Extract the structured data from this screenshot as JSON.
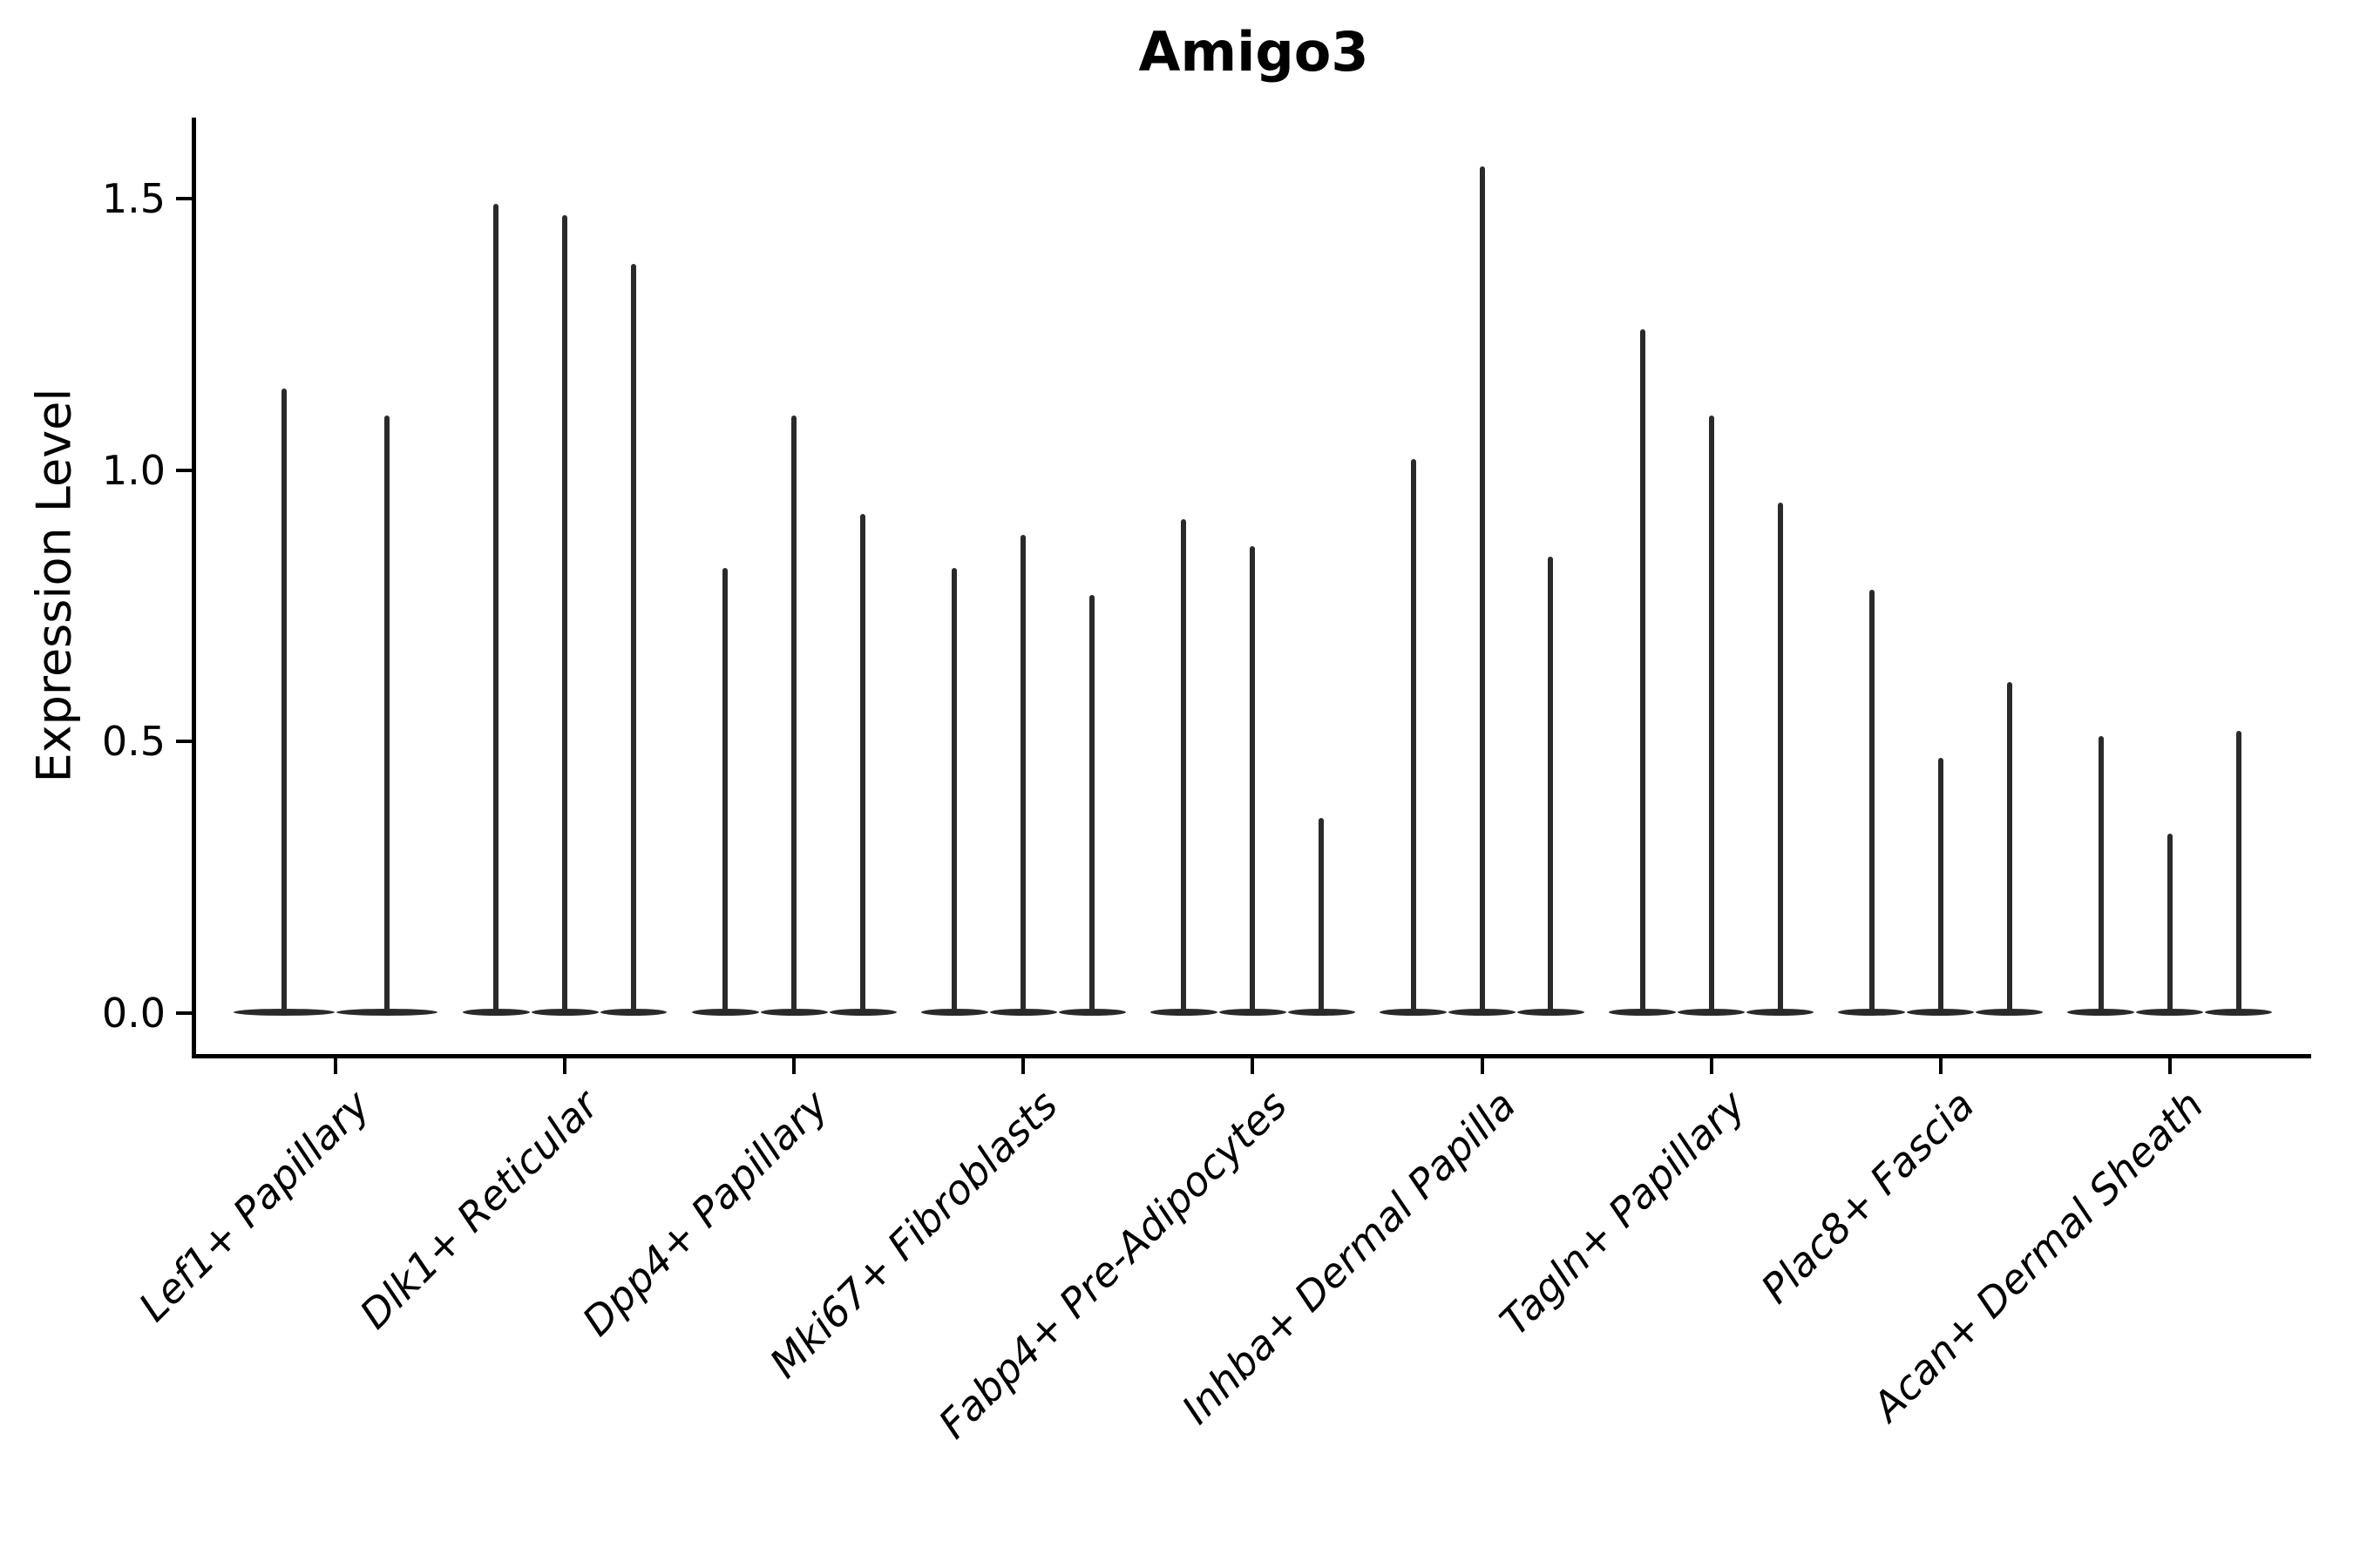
{
  "chart_data": {
    "type": "violin",
    "title": "Amigo3",
    "ylabel": "Expression Level",
    "xlabel": "",
    "yticks": [
      "0.0",
      "0.5",
      "1.0",
      "1.5"
    ],
    "ytick_values": [
      0.0,
      0.5,
      1.0,
      1.5
    ],
    "ylim": [
      -0.075,
      1.65
    ],
    "grid": "off",
    "legend": "none",
    "style_note": "needle violins: nearly all density at 0 with thin spike to max expression",
    "violin_color": "#2a2a2a",
    "axis_color": "#000000",
    "categories": [
      {
        "label": "Lef1+ Papillary",
        "maxima": [
          1.15,
          1.1
        ]
      },
      {
        "label": "Dlk1+ Reticular",
        "maxima": [
          1.49,
          1.47,
          1.38
        ]
      },
      {
        "label": "Dpp4+ Papillary",
        "maxima": [
          0.82,
          1.1,
          0.92
        ]
      },
      {
        "label": "Mki67+ Fibroblasts",
        "maxima": [
          0.82,
          0.88,
          0.77
        ]
      },
      {
        "label": "Fabp4+ Pre-Adipocytes",
        "maxima": [
          0.91,
          0.86,
          0.36
        ]
      },
      {
        "label": "Inhba+ Dermal Papilla",
        "maxima": [
          1.02,
          1.56,
          0.84
        ]
      },
      {
        "label": "Tagln+ Papillary",
        "maxima": [
          1.26,
          1.1,
          0.94
        ]
      },
      {
        "label": "Plac8+ Fascia",
        "maxima": [
          0.78,
          0.47,
          0.61
        ]
      },
      {
        "label": "Acan+ Dermal Sheath",
        "maxima": [
          0.51,
          0.33,
          0.52
        ]
      }
    ]
  }
}
